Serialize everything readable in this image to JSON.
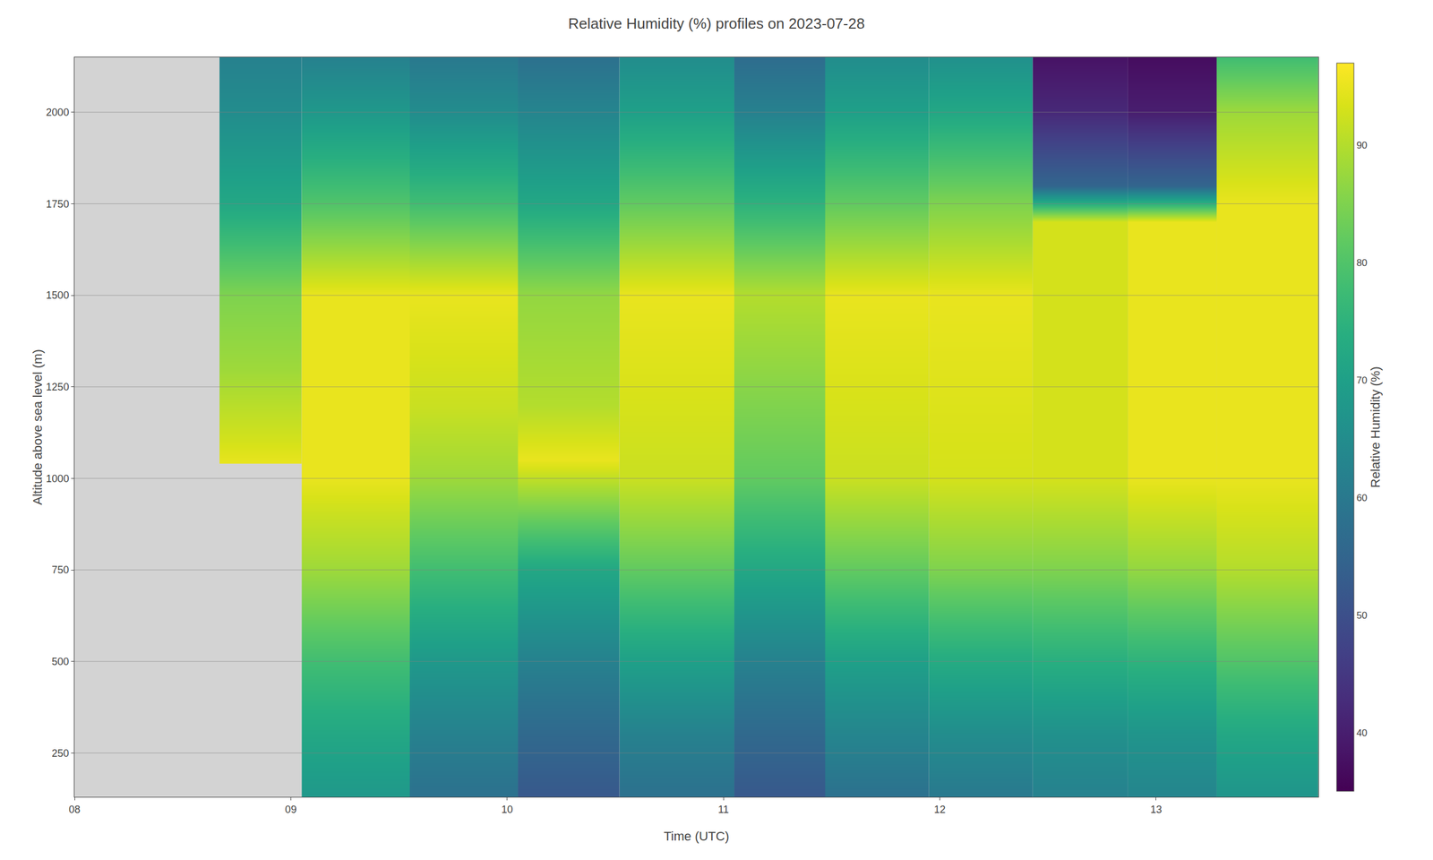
{
  "chart_data": {
    "type": "heatmap",
    "title": "Relative Humidity (%) profiles on 2023-07-28",
    "xlabel": "Time (UTC)",
    "ylabel": "Altitude above sea level (m)",
    "colorbar_label": "Relative Humidity (%)",
    "colorbar_range": [
      35,
      97
    ],
    "colorbar_ticks": [
      40,
      50,
      60,
      70,
      80,
      90
    ],
    "color": "#d3d3d3",
    "xlim": [
      8.0,
      13.75
    ],
    "ylim": [
      130,
      2150
    ],
    "xticks": [
      {
        "value": 8,
        "label": "08"
      },
      {
        "value": 9,
        "label": "09"
      },
      10,
      11,
      12,
      13
    ],
    "yticks": [
      250,
      500,
      750,
      1000,
      1250,
      1500,
      1750,
      2000
    ],
    "grid": "y",
    "no_data": [
      8.0,
      8.67
    ],
    "soundings": [
      {
        "time": [
          8.67,
          9.05
        ],
        "levels": [
          1040,
          1100,
          1300,
          1500,
          1750,
          2000,
          2150
        ],
        "values": [
          95,
          93,
          88,
          85,
          72,
          65,
          62
        ]
      },
      {
        "time": [
          9.05,
          9.55
        ],
        "levels": [
          130,
          300,
          500,
          750,
          900,
          1000,
          1200,
          1500,
          1750,
          2000,
          2150
        ],
        "values": [
          68,
          72,
          78,
          88,
          92,
          95,
          95,
          95,
          80,
          68,
          62
        ]
      },
      {
        "time": [
          9.55,
          10.05
        ],
        "levels": [
          130,
          300,
          500,
          750,
          1000,
          1200,
          1500,
          1750,
          2000,
          2150
        ],
        "values": [
          58,
          62,
          68,
          78,
          88,
          92,
          95,
          78,
          65,
          60
        ]
      },
      {
        "time": [
          10.05,
          10.52
        ],
        "levels": [
          130,
          300,
          500,
          750,
          1050,
          1200,
          1500,
          1750,
          2000,
          2150
        ],
        "values": [
          52,
          56,
          62,
          72,
          95,
          90,
          87,
          72,
          63,
          58
        ]
      },
      {
        "time": [
          10.52,
          11.05
        ],
        "levels": [
          130,
          300,
          500,
          750,
          1000,
          1500,
          1750,
          2000,
          2150
        ],
        "values": [
          58,
          62,
          70,
          82,
          92,
          95,
          82,
          70,
          65
        ]
      },
      {
        "time": [
          11.05,
          11.47
        ],
        "levels": [
          130,
          300,
          500,
          750,
          1000,
          1500,
          1750,
          2000,
          2150
        ],
        "values": [
          52,
          56,
          62,
          72,
          82,
          90,
          75,
          62,
          57
        ]
      },
      {
        "time": [
          11.47,
          11.95
        ],
        "levels": [
          130,
          300,
          500,
          750,
          1000,
          1500,
          1750,
          2000,
          2150
        ],
        "values": [
          58,
          63,
          70,
          82,
          92,
          95,
          82,
          70,
          65
        ]
      },
      {
        "time": [
          11.95,
          12.43
        ],
        "levels": [
          130,
          300,
          500,
          750,
          1000,
          1500,
          1750,
          2000,
          2150
        ],
        "values": [
          60,
          65,
          73,
          85,
          93,
          95,
          85,
          72,
          66
        ]
      },
      {
        "time": [
          12.43,
          12.87
        ],
        "levels": [
          130,
          300,
          500,
          750,
          1000,
          1700,
          1800,
          2000,
          2150
        ],
        "values": [
          62,
          66,
          74,
          85,
          93,
          93,
          55,
          42,
          38
        ]
      },
      {
        "time": [
          12.87,
          13.28
        ],
        "levels": [
          130,
          300,
          500,
          750,
          1000,
          1700,
          1800,
          2000,
          2150
        ],
        "values": [
          63,
          67,
          75,
          87,
          95,
          95,
          55,
          40,
          37
        ]
      },
      {
        "time": [
          13.28,
          13.75
        ],
        "levels": [
          130,
          300,
          500,
          750,
          1000,
          1750,
          2000,
          2150
        ],
        "values": [
          67,
          72,
          80,
          90,
          95,
          95,
          88,
          78
        ]
      }
    ]
  }
}
